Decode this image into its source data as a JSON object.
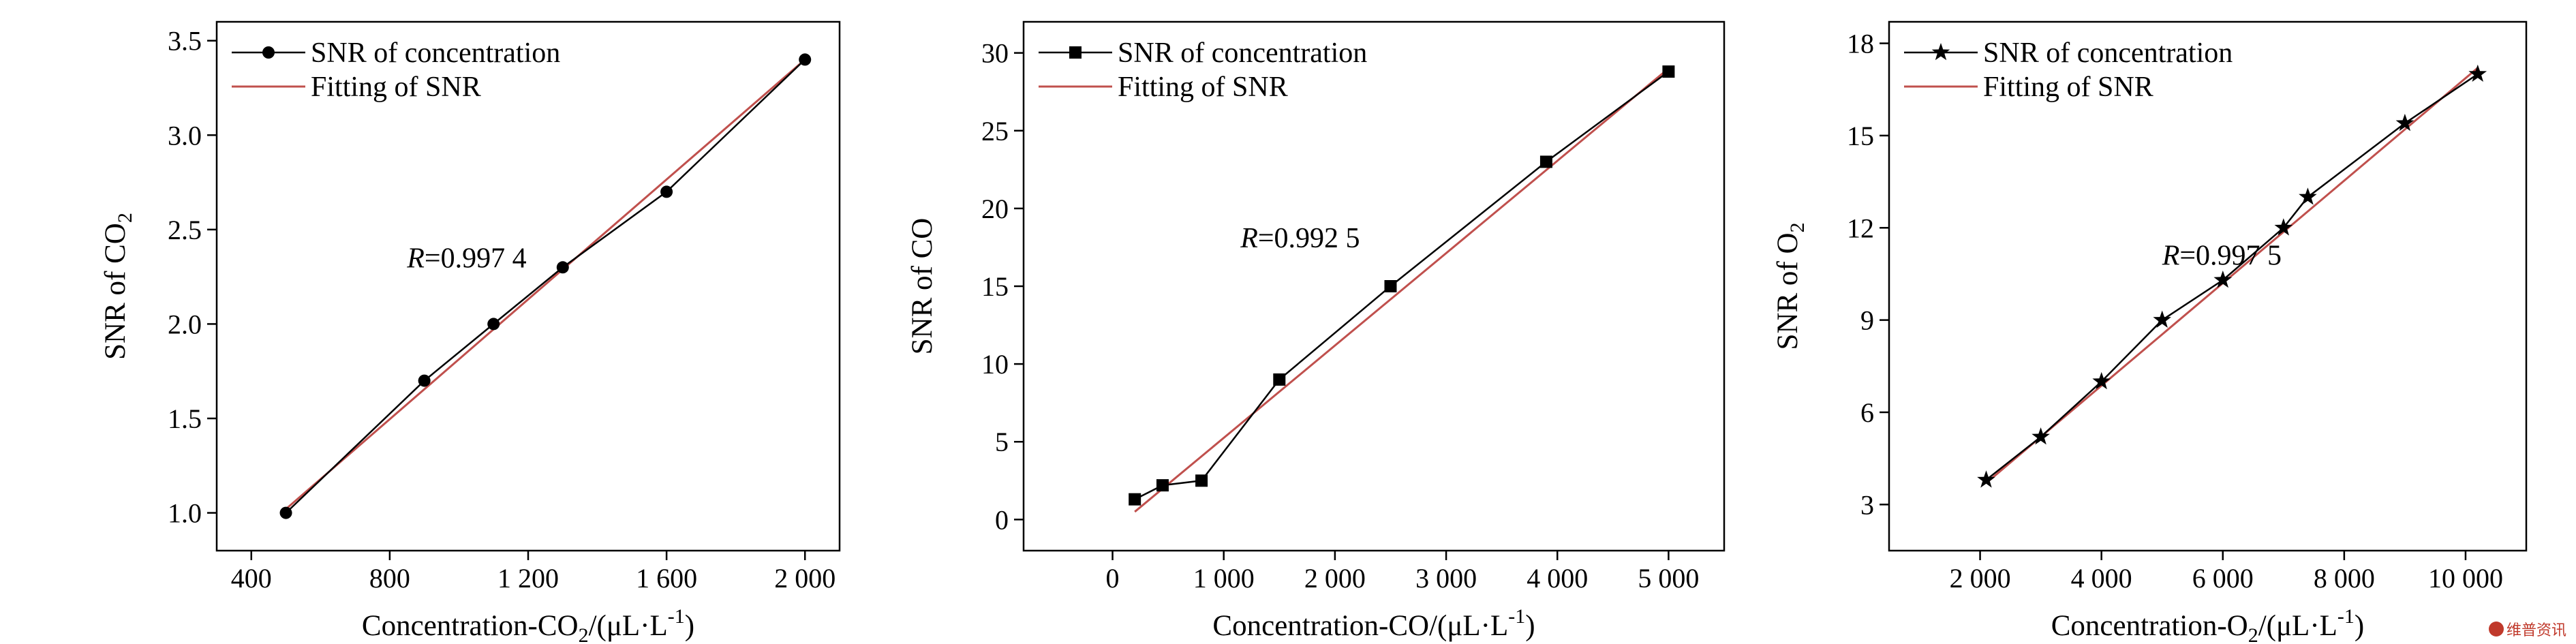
{
  "colors": {
    "fit_line": "#c0504d",
    "data_line": "#000000"
  },
  "watermark": {
    "text": "维普资讯"
  },
  "chart_data": [
    {
      "type": "line",
      "ylabel_main": "SNR of  CO",
      "ylabel_sub": "2",
      "xlabel": "Concentration-CO",
      "xlabel_sub": "2",
      "xlabel_unit": "/(μL·L",
      "xlabel_sup": "-1",
      "xlabel_end": ")",
      "xlim": [
        300,
        2100
      ],
      "ylim": [
        0.8,
        3.6
      ],
      "xticks": [
        400,
        800,
        1200,
        1600,
        2000
      ],
      "xtick_labels": [
        "400",
        "800",
        "1 200",
        "1 600",
        "2 000"
      ],
      "yticks": [
        1.0,
        1.5,
        2.0,
        2.5,
        3.0,
        3.5
      ],
      "ytick_labels": [
        "1.0",
        "1.5",
        "2.0",
        "2.5",
        "3.0",
        "3.5"
      ],
      "marker": "circle",
      "series": [
        {
          "name": "SNR of concentration",
          "x": [
            500,
            900,
            1100,
            1300,
            1600,
            2000
          ],
          "y": [
            1.0,
            1.7,
            2.0,
            2.3,
            2.7,
            3.4
          ]
        },
        {
          "name": "Fitting of SNR",
          "x": [
            500,
            2000
          ],
          "y": [
            1.02,
            3.4
          ]
        }
      ],
      "annotation_label": "R",
      "annotation_value": "=0.997 4",
      "annotation_pos": [
        850,
        2.3
      ]
    },
    {
      "type": "line",
      "ylabel_main": "SNR of CO",
      "ylabel_sub": "",
      "xlabel": "Concentration-CO",
      "xlabel_sub": "",
      "xlabel_unit": "/(μL·L",
      "xlabel_sup": "-1",
      "xlabel_end": ")",
      "xlim": [
        -800,
        5500
      ],
      "ylim": [
        -2,
        32
      ],
      "xticks": [
        0,
        1000,
        2000,
        3000,
        4000,
        5000
      ],
      "xtick_labels": [
        "0",
        "1 000",
        "2 000",
        "3 000",
        "4 000",
        "5 000"
      ],
      "yticks": [
        0,
        5,
        10,
        15,
        20,
        25,
        30
      ],
      "ytick_labels": [
        "0",
        "5",
        "10",
        "15",
        "20",
        "25",
        "30"
      ],
      "marker": "square",
      "series": [
        {
          "name": "SNR of concentration",
          "x": [
            200,
            450,
            800,
            1500,
            2500,
            3900,
            5000
          ],
          "y": [
            1.3,
            2.2,
            2.5,
            9.0,
            15.0,
            23.0,
            28.8
          ]
        },
        {
          "name": "Fitting of SNR",
          "x": [
            200,
            5000
          ],
          "y": [
            0.5,
            29.0
          ]
        }
      ],
      "annotation_label": "R",
      "annotation_value": "=0.992 5",
      "annotation_pos": [
        1150,
        17.5
      ]
    },
    {
      "type": "line",
      "ylabel_main": "SNR of O",
      "ylabel_sub": "2",
      "xlabel": "Concentration-O",
      "xlabel_sub": "2",
      "xlabel_unit": "/(μL·L",
      "xlabel_sup": "-1",
      "xlabel_end": ")",
      "xlim": [
        500,
        11000
      ],
      "ylim": [
        1.5,
        18.7
      ],
      "xticks": [
        2000,
        4000,
        6000,
        8000,
        10000
      ],
      "xtick_labels": [
        "2 000",
        "4 000",
        "6 000",
        "8 000",
        "10 000"
      ],
      "yticks": [
        3,
        6,
        9,
        12,
        15,
        18
      ],
      "ytick_labels": [
        "3",
        "6",
        "9",
        "12",
        "15",
        "18"
      ],
      "marker": "star",
      "series": [
        {
          "name": "SNR of concentration",
          "x": [
            2100,
            3000,
            4000,
            5000,
            6000,
            7000,
            7400,
            9000,
            10200
          ],
          "y": [
            3.8,
            5.2,
            7.0,
            9.0,
            10.3,
            12.0,
            13.0,
            15.4,
            17.0
          ]
        },
        {
          "name": "Fitting of SNR",
          "x": [
            2100,
            10200
          ],
          "y": [
            3.7,
            17.2
          ]
        }
      ],
      "annotation_label": "R",
      "annotation_value": "=0.997 5",
      "annotation_pos": [
        5000,
        10.8
      ]
    }
  ]
}
